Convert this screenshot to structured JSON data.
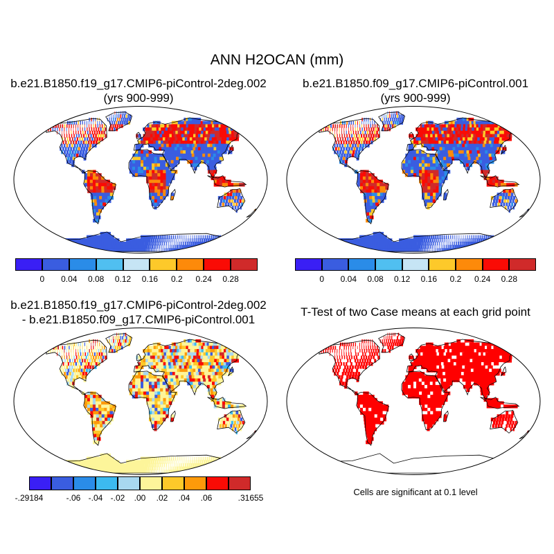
{
  "title": "ANN H2OCAN (mm)",
  "panels": [
    {
      "id": "case1",
      "title_line1": "b.e21.B1850.f19_g17.CMIP6-piControl-2deg.002",
      "title_line2": "(yrs 900-999)"
    },
    {
      "id": "case2",
      "title_line1": "b.e21.B1850.f09_g17.CMIP6-piControl.001",
      "title_line2": "(yrs 900-999)"
    },
    {
      "id": "diff",
      "title_line1": "b.e21.B1850.f19_g17.CMIP6-piControl-2deg.002",
      "title_line2": "- b.e21.B1850.f09_g17.CMIP6-piControl.001"
    },
    {
      "id": "ttest",
      "title_line1": "T-Test of two Case means at each grid point"
    }
  ],
  "colorbar_main": {
    "colors": [
      "#3a1ff5",
      "#3a5de0",
      "#2a8ce8",
      "#50bff0",
      "#c6e5f5",
      "#fdc92a",
      "#fd8a0a",
      "#fa0b05",
      "#d02a2a"
    ],
    "labels": [
      "0",
      "0.04",
      "0.08",
      "0.12",
      "0.16",
      "0.2",
      "0.24",
      "0.28"
    ]
  },
  "colorbar_diff": {
    "colors": [
      "#3a1ff5",
      "#3a5de0",
      "#2a8ce8",
      "#3cbaf0",
      "#a8d8f0",
      "#fdf59a",
      "#fdc92a",
      "#fd9a0a",
      "#fa0b05",
      "#d02a2a"
    ],
    "labels": [
      "-.29184",
      "-.06",
      "-.04",
      "-.02",
      ".00",
      ".02",
      ".04",
      ".06",
      ".31655"
    ]
  },
  "significance_note": "Cells are significant at 0.1 level",
  "legend_colors": {
    "significant": "#ff0000",
    "coastline": "#000000"
  }
}
